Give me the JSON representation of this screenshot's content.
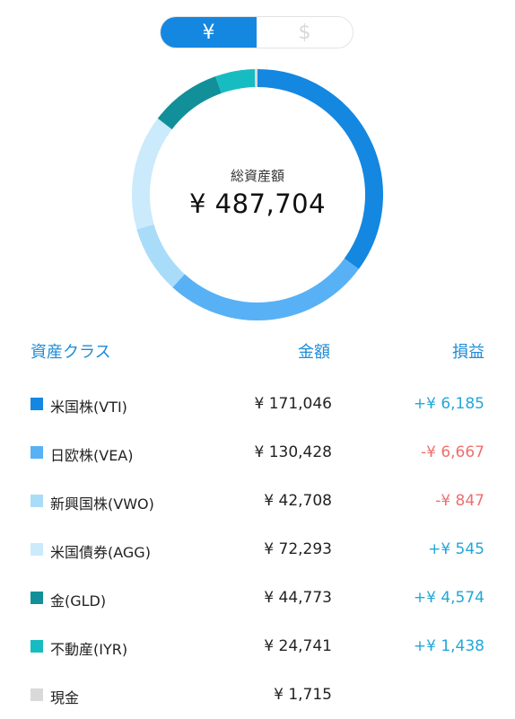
{
  "currency_toggle": {
    "yen_label": "¥",
    "usd_label": "$",
    "selected": "yen"
  },
  "summary": {
    "label": "総資産額",
    "value": "¥ 487,704"
  },
  "chart_data": {
    "type": "pie",
    "total": 487704,
    "categories": [
      "米国株(VTI)",
      "日欧株(VEA)",
      "新興国株(VWO)",
      "米国債券(AGG)",
      "金(GLD)",
      "不動産(IYR)",
      "現金"
    ],
    "values": [
      171046,
      130428,
      42708,
      72293,
      44773,
      24741,
      1715
    ],
    "colors": [
      "#1487e1",
      "#58b1f5",
      "#a9dcf9",
      "#cbeafb",
      "#11909a",
      "#16bcc2",
      "#d9d9d9"
    ]
  },
  "table": {
    "headers": {
      "class": "資産クラス",
      "amount": "金額",
      "pl": "損益"
    },
    "rows": [
      {
        "name": "米国株(VTI)",
        "amount": "¥ 171,046",
        "pl": "+¥ 6,185",
        "pl_color": "#22a7d8",
        "color": "#1487e1"
      },
      {
        "name": "日欧株(VEA)",
        "amount": "¥ 130,428",
        "pl": "-¥ 6,667",
        "pl_color": "#ef6f6f",
        "color": "#58b1f5"
      },
      {
        "name": "新興国株(VWO)",
        "amount": "¥ 42,708",
        "pl": "-¥ 847",
        "pl_color": "#ef6f6f",
        "color": "#a9dcf9"
      },
      {
        "name": "米国債券(AGG)",
        "amount": "¥ 72,293",
        "pl": "+¥ 545",
        "pl_color": "#22a7d8",
        "color": "#cbeafb"
      },
      {
        "name": "金(GLD)",
        "amount": "¥ 44,773",
        "pl": "+¥ 4,574",
        "pl_color": "#22a7d8",
        "color": "#11909a"
      },
      {
        "name": "不動産(IYR)",
        "amount": "¥ 24,741",
        "pl": "+¥ 1,438",
        "pl_color": "#22a7d8",
        "color": "#16bcc2"
      },
      {
        "name": "現金",
        "amount": "¥ 1,715",
        "pl": "",
        "pl_color": "#22a7d8",
        "color": "#d9d9d9"
      }
    ]
  }
}
